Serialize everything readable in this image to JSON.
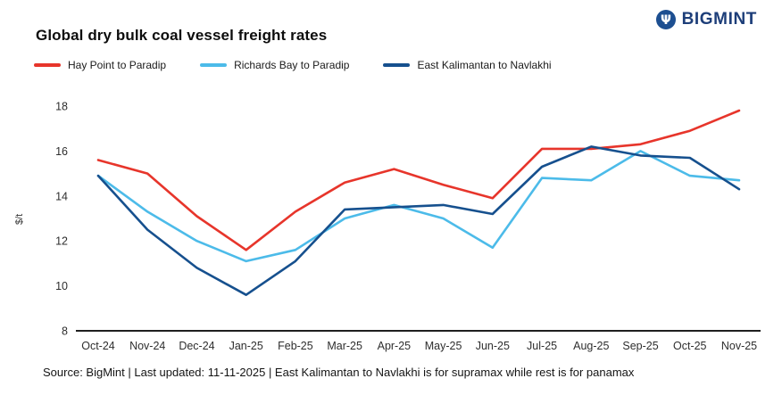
{
  "page": {
    "title": "Global dry bulk coal vessel freight rates",
    "logo_text": "BIGMINT",
    "source_note": "Source: BigMint | Last updated: 11-11-2025 | East Kalimantan to Navlakhi is for supramax while rest is for panamax"
  },
  "colors": {
    "logo_navy": "#1d3e79",
    "axis_line": "#1f1f1f",
    "tick_text": "#2e2e2e"
  },
  "chart_data": {
    "type": "line",
    "title": "Global dry bulk coal vessel freight rates",
    "xlabel": "",
    "ylabel": "$/t",
    "ylim": [
      8,
      18
    ],
    "ytick_step": 2,
    "grid": false,
    "legend_position": "top-left",
    "categories": [
      "Oct-24",
      "Nov-24",
      "Dec-24",
      "Jan-25",
      "Feb-25",
      "Mar-25",
      "Apr-25",
      "May-25",
      "Jun-25",
      "Jul-25",
      "Aug-25",
      "Sep-25",
      "Oct-25",
      "Nov-25"
    ],
    "series": [
      {
        "name": "Hay Point to Paradip",
        "color": "#e7352b",
        "values": [
          15.6,
          15.0,
          13.1,
          11.6,
          13.3,
          14.6,
          15.2,
          14.5,
          13.9,
          16.1,
          16.1,
          16.3,
          16.9,
          17.8
        ]
      },
      {
        "name": "Richards Bay to Paradip",
        "color": "#4cbbe9",
        "values": [
          14.9,
          13.3,
          12.0,
          11.1,
          11.6,
          13.0,
          13.6,
          13.0,
          11.7,
          14.8,
          14.7,
          16.0,
          14.9,
          14.7
        ]
      },
      {
        "name": "East Kalimantan to Navlakhi",
        "color": "#16508e",
        "values": [
          14.9,
          12.5,
          10.8,
          9.6,
          11.1,
          13.4,
          13.5,
          13.6,
          13.2,
          15.3,
          16.2,
          15.8,
          15.7,
          14.3
        ]
      }
    ]
  }
}
